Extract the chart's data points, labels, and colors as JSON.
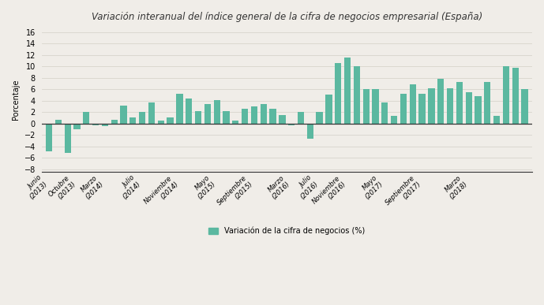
{
  "title": "Variación interanual del índice general de la cifra de negocios empresarial (España)",
  "ylabel": "Porcentaje",
  "legend_label": "Variación de la cifra de negocios (%)",
  "bar_color": "#5bb8a0",
  "background_color": "#f0ede8",
  "grid_color": "#d8d4cc",
  "values": [
    -4.8,
    0.6,
    -5.2,
    -1.0,
    2.0,
    -0.3,
    -0.5,
    0.7,
    3.1,
    1.0,
    2.0,
    3.7,
    0.5,
    1.0,
    5.2,
    4.4,
    2.1,
    3.4,
    4.1,
    2.1,
    0.5,
    2.6,
    3.0,
    3.4,
    2.6,
    1.5,
    -0.3,
    2.0,
    -2.6,
    2.0,
    5.1,
    10.5,
    11.5,
    10.0,
    6.0,
    6.0,
    3.7,
    1.3,
    5.2,
    6.8,
    5.2,
    6.2,
    7.8,
    6.2,
    7.2,
    5.5,
    4.8,
    7.2,
    1.3,
    10.0,
    9.8,
    6.0
  ],
  "tick_labels": [
    "Junio\n(2013)",
    "Octubre\n(2013)",
    "Marzo\n(2014)",
    "Julio\n(2014)",
    "Noviembre\n(2014)",
    "Mayo\n(2015)",
    "Septiembre\n(2015)",
    "Marzo\n(2016)",
    "Julio\n(2016)",
    "Noviembre\n(2016)",
    "Mayo\n(2017)",
    "Septiembre\n(2017)",
    "Marzo\n(2018)"
  ],
  "tick_indices": [
    0,
    3,
    6,
    10,
    14,
    18,
    22,
    26,
    29,
    32,
    36,
    40,
    45
  ],
  "ylim": [
    -8.5,
    17
  ],
  "yticks": [
    -8,
    -6,
    -4,
    -2,
    0,
    2,
    4,
    6,
    8,
    10,
    12,
    14,
    16
  ]
}
